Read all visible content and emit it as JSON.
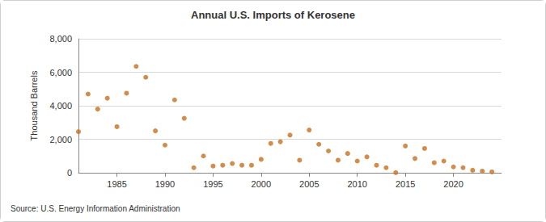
{
  "chart_data": {
    "type": "scatter",
    "title": "Annual U.S. Imports of Kerosene",
    "y_label": "Thousand Barrels",
    "source": "Source: U.S. Energy Information Administration",
    "x": [
      1981,
      1982,
      1983,
      1984,
      1985,
      1986,
      1987,
      1988,
      1989,
      1990,
      1991,
      1992,
      1993,
      1994,
      1995,
      1996,
      1997,
      1998,
      1999,
      2000,
      2001,
      2002,
      2003,
      2004,
      2005,
      2006,
      2007,
      2008,
      2009,
      2010,
      2011,
      2012,
      2013,
      2014,
      2015,
      2016,
      2017,
      2018,
      2019,
      2020,
      2021,
      2022,
      2023,
      2024
    ],
    "values": [
      2450,
      4700,
      3800,
      4450,
      2750,
      4750,
      6350,
      5700,
      2500,
      1650,
      4350,
      3250,
      300,
      1000,
      400,
      450,
      550,
      450,
      450,
      800,
      1750,
      1850,
      2250,
      750,
      2550,
      1700,
      1300,
      750,
      1150,
      700,
      950,
      450,
      300,
      10,
      1600,
      850,
      1450,
      600,
      700,
      350,
      300,
      150,
      100,
      50
    ],
    "color": "#c8701e",
    "marker": "circle",
    "xlim": [
      1981,
      2025
    ],
    "xticks": [
      1985,
      1990,
      1995,
      2000,
      2005,
      2010,
      2015,
      2020
    ],
    "ylim": [
      0,
      8000
    ],
    "yticks": [
      0,
      {
        "value": 2000,
        "label": "2,000"
      },
      {
        "value": 4000,
        "label": "4,000"
      },
      {
        "value": 6000,
        "label": "6,000"
      },
      {
        "value": 8000,
        "label": "8,000"
      }
    ],
    "grid": true
  }
}
